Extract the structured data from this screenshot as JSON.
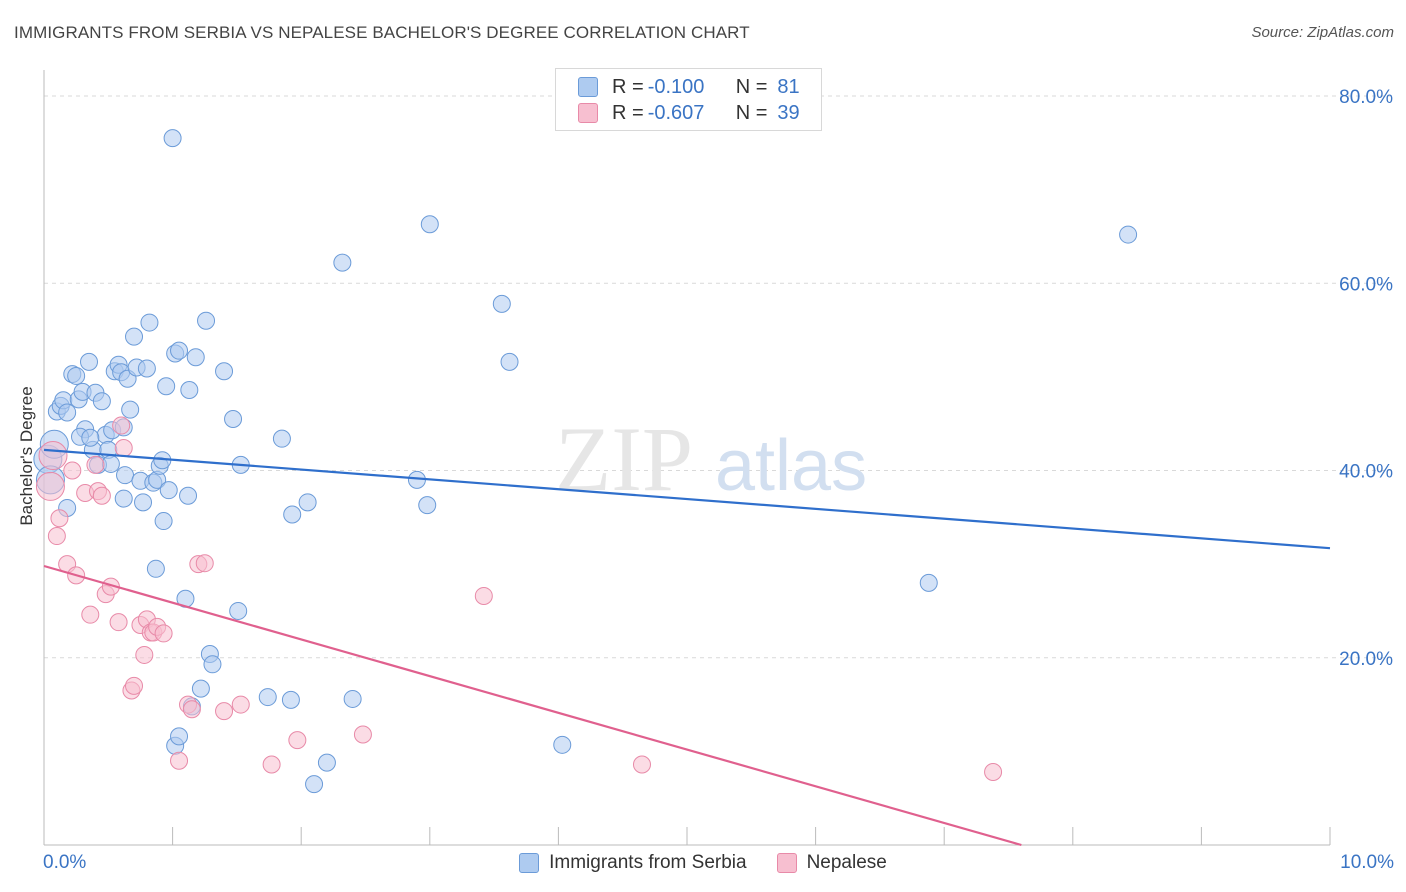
{
  "header": {
    "title": "IMMIGRANTS FROM SERBIA VS NEPALESE BACHELOR'S DEGREE CORRELATION CHART",
    "source": "Source: ZipAtlas.com"
  },
  "watermark": {
    "zip": "ZIP",
    "atlas": "atlas"
  },
  "legend": {
    "rows": [
      {
        "r_label": "R =",
        "r_value": "-0.100",
        "n_label": "N =",
        "n_value": "81"
      },
      {
        "r_label": "R =",
        "r_value": "-0.607",
        "n_label": "N =",
        "n_value": "39"
      }
    ]
  },
  "colors": {
    "serbia_fill": "#aecbf0",
    "serbia_stroke": "#6b9bd8",
    "serbia_line": "#2f6fcc",
    "nepalese_fill": "#f7bfd0",
    "nepalese_stroke": "#e88aa8",
    "nepalese_line": "#e0608e",
    "accent_text": "#3a74c4",
    "grid": "#d9d9d9"
  },
  "chart_data": {
    "type": "scatter",
    "title": "IMMIGRANTS FROM SERBIA VS NEPALESE BACHELOR'S DEGREE CORRELATION CHART",
    "xlabel": "",
    "ylabel": "Bachelor's Degree",
    "xlim": [
      0,
      10
    ],
    "ylim": [
      0,
      85
    ],
    "x_tick_labels": [
      "0.0%",
      "10.0%"
    ],
    "y_ticks": [
      20,
      40,
      60,
      80
    ],
    "y_tick_labels": [
      "20.0%",
      "40.0%",
      "60.0%",
      "80.0%"
    ],
    "grid": true,
    "legend_position": "top-center",
    "series": [
      {
        "name": "Immigrants from Serbia",
        "r": -0.1,
        "n": 81,
        "trend": {
          "x": [
            0,
            10
          ],
          "y": [
            42.2,
            31.7
          ]
        },
        "points": [
          [
            0.03,
            41.2
          ],
          [
            0.05,
            39.0
          ],
          [
            0.08,
            42.8
          ],
          [
            0.1,
            46.3
          ],
          [
            0.13,
            46.9
          ],
          [
            0.15,
            47.5
          ],
          [
            0.18,
            46.2
          ],
          [
            0.22,
            50.3
          ],
          [
            0.25,
            50.1
          ],
          [
            0.27,
            47.6
          ],
          [
            0.3,
            48.4
          ],
          [
            0.32,
            44.4
          ],
          [
            0.35,
            51.6
          ],
          [
            0.38,
            42.2
          ],
          [
            0.4,
            48.3
          ],
          [
            0.42,
            40.6
          ],
          [
            0.45,
            47.4
          ],
          [
            0.48,
            43.8
          ],
          [
            0.5,
            42.2
          ],
          [
            0.53,
            44.3
          ],
          [
            0.55,
            50.6
          ],
          [
            0.58,
            51.3
          ],
          [
            0.6,
            50.5
          ],
          [
            0.62,
            44.6
          ],
          [
            0.63,
            39.5
          ],
          [
            0.65,
            49.8
          ],
          [
            0.67,
            46.5
          ],
          [
            0.7,
            54.3
          ],
          [
            0.72,
            51.0
          ],
          [
            0.75,
            38.9
          ],
          [
            0.77,
            36.6
          ],
          [
            0.8,
            50.9
          ],
          [
            0.82,
            55.8
          ],
          [
            0.85,
            38.7
          ],
          [
            0.87,
            29.5
          ],
          [
            0.88,
            39.0
          ],
          [
            0.9,
            40.5
          ],
          [
            0.92,
            41.1
          ],
          [
            0.93,
            34.6
          ],
          [
            0.95,
            49.0
          ],
          [
            0.97,
            37.9
          ],
          [
            1.0,
            75.5
          ],
          [
            1.02,
            52.5
          ],
          [
            1.05,
            52.8
          ],
          [
            1.1,
            26.3
          ],
          [
            1.12,
            37.3
          ],
          [
            1.13,
            48.6
          ],
          [
            1.15,
            14.8
          ],
          [
            1.18,
            52.1
          ],
          [
            1.22,
            16.7
          ],
          [
            1.26,
            56.0
          ],
          [
            1.29,
            20.4
          ],
          [
            1.31,
            19.3
          ],
          [
            1.4,
            50.6
          ],
          [
            1.47,
            45.5
          ],
          [
            1.53,
            40.6
          ],
          [
            1.51,
            25.0
          ],
          [
            1.74,
            15.8
          ],
          [
            1.85,
            43.4
          ],
          [
            1.92,
            15.5
          ],
          [
            1.93,
            35.3
          ],
          [
            2.05,
            36.6
          ],
          [
            2.2,
            8.8
          ],
          [
            2.32,
            62.2
          ],
          [
            2.4,
            15.6
          ],
          [
            3.0,
            66.3
          ],
          [
            2.9,
            39.0
          ],
          [
            2.98,
            36.3
          ],
          [
            3.56,
            57.8
          ],
          [
            3.62,
            51.6
          ],
          [
            4.03,
            10.7
          ],
          [
            6.88,
            28.0
          ],
          [
            8.43,
            65.2
          ],
          [
            1.02,
            10.6
          ],
          [
            2.1,
            6.5
          ],
          [
            1.05,
            11.6
          ],
          [
            0.52,
            40.7
          ],
          [
            0.28,
            43.6
          ],
          [
            0.18,
            36.0
          ],
          [
            0.62,
            37.0
          ],
          [
            0.36,
            43.5
          ]
        ]
      },
      {
        "name": "Nepalese",
        "r": -0.607,
        "n": 39,
        "trend": {
          "x": [
            0,
            7.6
          ],
          "y": [
            29.8,
            0
          ]
        },
        "points": [
          [
            0.05,
            38.3
          ],
          [
            0.07,
            41.6
          ],
          [
            0.1,
            33.0
          ],
          [
            0.12,
            34.9
          ],
          [
            0.18,
            30.0
          ],
          [
            0.22,
            40.0
          ],
          [
            0.25,
            28.8
          ],
          [
            0.32,
            37.6
          ],
          [
            0.36,
            24.6
          ],
          [
            0.4,
            40.6
          ],
          [
            0.42,
            37.8
          ],
          [
            0.45,
            37.3
          ],
          [
            0.48,
            26.8
          ],
          [
            0.52,
            27.6
          ],
          [
            0.58,
            23.8
          ],
          [
            0.6,
            44.8
          ],
          [
            0.62,
            42.4
          ],
          [
            0.68,
            16.5
          ],
          [
            0.7,
            17.0
          ],
          [
            0.75,
            23.5
          ],
          [
            0.78,
            20.3
          ],
          [
            0.8,
            24.1
          ],
          [
            0.83,
            22.7
          ],
          [
            0.85,
            22.7
          ],
          [
            0.88,
            23.3
          ],
          [
            0.93,
            22.6
          ],
          [
            1.05,
            9.0
          ],
          [
            1.12,
            15.0
          ],
          [
            1.15,
            14.5
          ],
          [
            1.2,
            30.0
          ],
          [
            1.25,
            30.1
          ],
          [
            1.4,
            14.3
          ],
          [
            1.53,
            15.0
          ],
          [
            1.77,
            8.6
          ],
          [
            1.97,
            11.2
          ],
          [
            2.48,
            11.8
          ],
          [
            3.42,
            26.6
          ],
          [
            4.65,
            8.6
          ],
          [
            7.38,
            7.8
          ]
        ]
      }
    ]
  },
  "bottom_legend": {
    "items": [
      "Immigrants from Serbia",
      "Nepalese"
    ]
  }
}
